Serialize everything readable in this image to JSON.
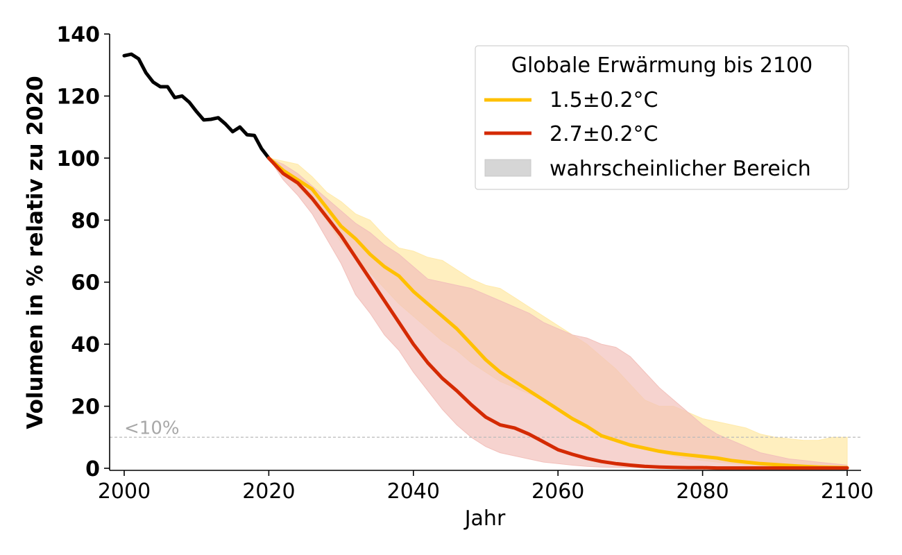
{
  "chart_data": {
    "type": "line",
    "xlabel": "Jahr",
    "ylabel": "Volumen in % relativ zu 2020",
    "xlim": [
      1998,
      2102
    ],
    "ylim": [
      0,
      140
    ],
    "xticks": [
      "2000",
      "2020",
      "2040",
      "2060",
      "2080",
      "2100"
    ],
    "yticks": [
      "0",
      "20",
      "40",
      "60",
      "80",
      "100",
      "120",
      "140"
    ],
    "legend": {
      "title": "Globale Erwärmung bis 2100",
      "placement": "top-right",
      "entries": [
        "1.5±0.2°C",
        "2.7±0.2°C",
        "wahrscheinlicher Bereich"
      ]
    },
    "reference_line": {
      "y": 10,
      "label": "<10%",
      "style": "dashed",
      "color": "#bbbbbb"
    },
    "grid": false,
    "historical": {
      "color": "#000000",
      "x": [
        2000,
        2001,
        2002,
        2003,
        2004,
        2005,
        2006,
        2007,
        2008,
        2009,
        2010,
        2011,
        2012,
        2013,
        2014,
        2015,
        2016,
        2017,
        2018,
        2019,
        2020
      ],
      "y": [
        133,
        133.5,
        132,
        127.5,
        124.5,
        123,
        123,
        119.5,
        120,
        118,
        115,
        112.3,
        112.5,
        113,
        111,
        108.5,
        110,
        107.5,
        107.3,
        103,
        100
      ]
    },
    "series": [
      {
        "name": "1.5±0.2°C",
        "color": "#ffc000",
        "band_color": "#ffeaaa",
        "x": [
          2020,
          2022,
          2024,
          2026,
          2028,
          2030,
          2032,
          2034,
          2036,
          2038,
          2040,
          2042,
          2044,
          2046,
          2048,
          2050,
          2052,
          2054,
          2056,
          2058,
          2060,
          2062,
          2064,
          2066,
          2068,
          2070,
          2072,
          2074,
          2076,
          2078,
          2080,
          2082,
          2084,
          2086,
          2088,
          2090,
          2092,
          2094,
          2096,
          2098,
          2100
        ],
        "y": [
          100,
          96,
          93,
          90,
          84,
          78,
          74,
          69,
          65,
          62,
          57,
          53,
          49,
          45,
          40,
          35,
          31,
          28,
          25,
          22,
          19,
          16,
          13.5,
          10.5,
          9,
          7.5,
          6.5,
          5.5,
          4.8,
          4.3,
          3.8,
          3.3,
          2.5,
          2,
          1.5,
          1.2,
          0.9,
          0.6,
          0.4,
          0.3,
          0.2
        ],
        "lower": [
          100,
          95,
          91,
          86,
          80,
          73,
          68,
          63,
          58,
          53,
          49,
          45,
          41,
          38,
          34,
          31,
          28,
          26,
          24,
          22,
          20,
          17,
          14,
          11,
          9,
          7.5,
          6,
          5,
          4,
          3,
          2.5,
          2,
          1.5,
          1,
          0.8,
          0.6,
          0.4,
          0.3,
          0.2,
          0.1,
          0
        ],
        "upper": [
          100,
          99,
          98,
          94,
          89,
          86,
          82,
          80,
          75,
          71,
          70,
          68,
          67,
          64,
          61,
          59,
          58,
          55,
          52,
          49,
          46,
          43,
          40,
          36,
          32,
          27,
          22,
          20,
          20,
          18,
          16,
          15,
          14,
          13,
          11,
          10,
          9.5,
          9,
          9,
          10,
          10
        ]
      },
      {
        "name": "2.7±0.2°C",
        "color": "#d42a02",
        "band_color": "#f2c0bb",
        "x": [
          2020,
          2022,
          2024,
          2026,
          2028,
          2030,
          2032,
          2034,
          2036,
          2038,
          2040,
          2042,
          2044,
          2046,
          2048,
          2050,
          2052,
          2054,
          2056,
          2058,
          2060,
          2062,
          2064,
          2066,
          2068,
          2070,
          2072,
          2074,
          2076,
          2078,
          2080,
          2082,
          2084,
          2086,
          2088,
          2090,
          2092,
          2094,
          2096,
          2098,
          2100
        ],
        "y": [
          100,
          95,
          92,
          87,
          81,
          75,
          68,
          61,
          54,
          47,
          40,
          34,
          29,
          25,
          20.5,
          16.5,
          14,
          13,
          11,
          8.5,
          6,
          4.5,
          3.2,
          2.2,
          1.5,
          1,
          0.6,
          0.4,
          0.3,
          0.2,
          0.2,
          0.1,
          0.1,
          0.1,
          0.1,
          0.1,
          0.1,
          0.1,
          0.1,
          0.1,
          0.1
        ],
        "lower": [
          100,
          93,
          88,
          82,
          74,
          66,
          56,
          50,
          43,
          38,
          31,
          25,
          19,
          14,
          10,
          7,
          5,
          4,
          3,
          2,
          1.5,
          1,
          0.6,
          0.4,
          0.3,
          0.2,
          0.1,
          0.1,
          0,
          0,
          0,
          0,
          0,
          0,
          0,
          0,
          0,
          0,
          0,
          0,
          0
        ],
        "upper": [
          100,
          98,
          95,
          91,
          87,
          83,
          79,
          76,
          72,
          69,
          65,
          61,
          60,
          59,
          58,
          56,
          54,
          52,
          50,
          47,
          45,
          43,
          42,
          40,
          39,
          36,
          31,
          26,
          22,
          18,
          14,
          11,
          9,
          7,
          5,
          4,
          3,
          2.5,
          2,
          1.5,
          1
        ]
      }
    ]
  }
}
